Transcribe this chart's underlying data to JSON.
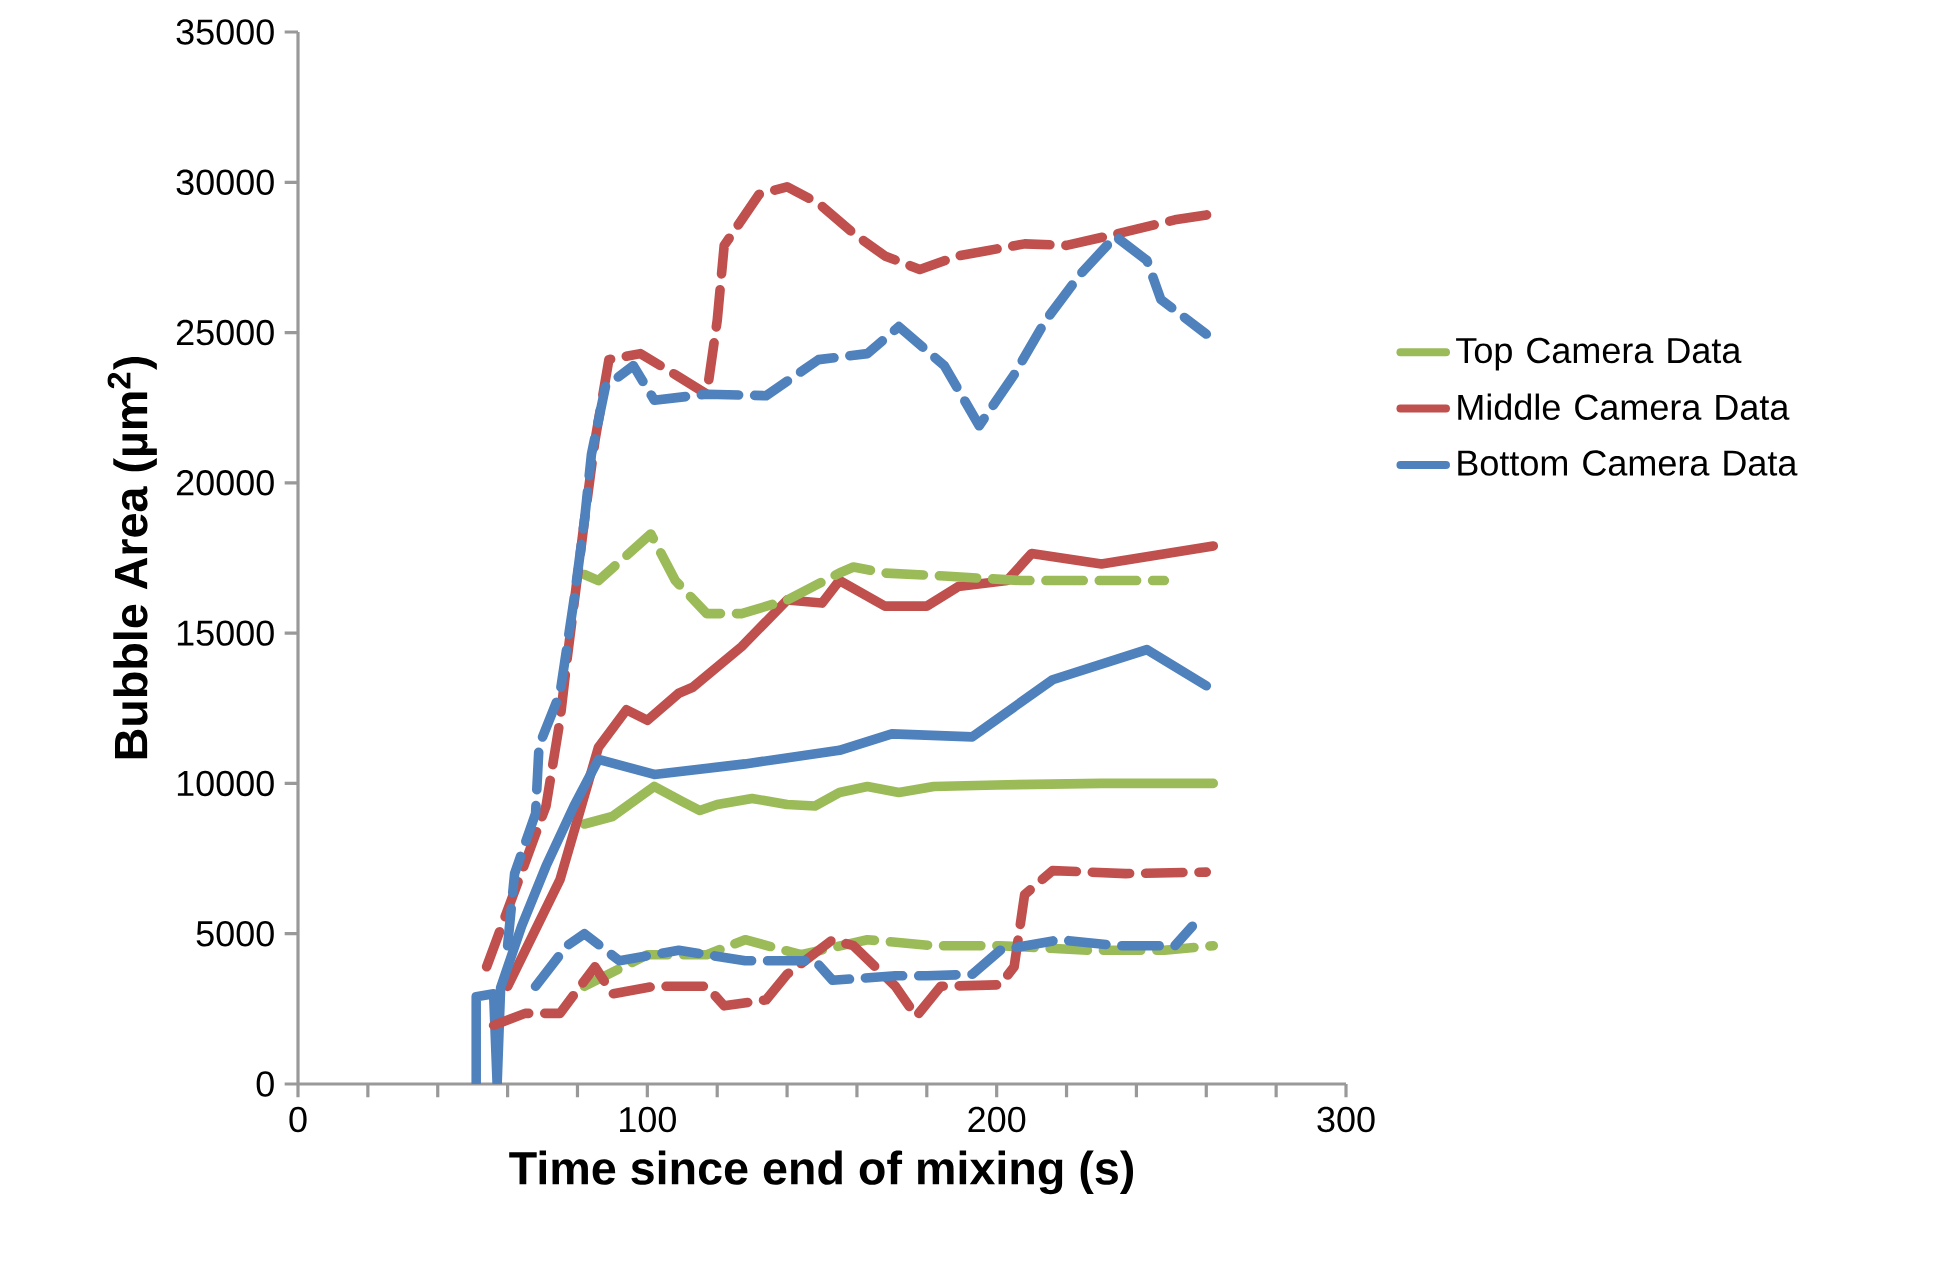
{
  "chart_data": {
    "type": "line",
    "xlabel": "Time since end of mixing (s)",
    "ylabel": "Bubble Area (µm$^{2}$)",
    "xlim": [
      0,
      300
    ],
    "xticks": [
      0,
      100,
      200,
      300
    ],
    "ylim": [
      0,
      35000
    ],
    "yticks": [
      0,
      5000,
      10000,
      15000,
      20000,
      25000,
      30000,
      35000
    ],
    "grid": false,
    "legend": "right",
    "marker": "none",
    "series": [
      {
        "name": "Top Camera Data",
        "color": "#9bbb59",
        "line_style": "solid",
        "x": [
          82,
          90,
          102,
          110,
          115,
          120,
          130,
          140,
          148,
          155,
          163,
          172,
          182,
          200,
          230,
          262
        ],
        "values": [
          8650,
          8900,
          9900,
          9400,
          9100,
          9300,
          9500,
          9300,
          9250,
          9700,
          9900,
          9700,
          9900,
          9950,
          10000,
          10000
        ]
      },
      {
        "name": "Middle Camera Data",
        "color": "#c0504d",
        "line_style": "solid",
        "x": [
          60,
          75,
          86,
          94,
          100,
          109,
          113,
          127,
          140,
          150,
          155,
          168,
          180,
          189,
          203,
          210,
          230,
          262
        ],
        "values": [
          3250,
          6800,
          11200,
          12450,
          12100,
          13000,
          13200,
          14550,
          16100,
          16000,
          16750,
          15900,
          15900,
          16550,
          16750,
          17650,
          17300,
          17900
        ]
      },
      {
        "name": "Bottom Camera Data",
        "color": "#4f81bd",
        "line_style": "solid",
        "x": [
          51,
          51,
          56,
          57,
          58,
          64,
          71,
          79,
          86,
          102,
          128,
          155,
          170,
          193,
          216,
          243,
          260
        ],
        "values": [
          0,
          2900,
          3000,
          0,
          3200,
          5250,
          7250,
          9250,
          10800,
          10300,
          10650,
          11100,
          11650,
          11550,
          13450,
          14450,
          13250
        ]
      },
      {
        "color": "#9bbb59",
        "line_style": "dashed",
        "x": [
          82,
          86,
          101,
          108,
          117,
          127,
          140,
          155,
          159,
          168,
          185,
          207,
          248
        ],
        "values": [
          16950,
          16750,
          18300,
          16750,
          15650,
          15650,
          16100,
          17000,
          17200,
          17000,
          16900,
          16750,
          16750
        ]
      },
      {
        "color": "#c0504d",
        "line_style": "dashed",
        "x": [
          54,
          71,
          75,
          77,
          82,
          85,
          89,
          98,
          108,
          117,
          120,
          122,
          132,
          140,
          149,
          159,
          168,
          178,
          189,
          208,
          220,
          235,
          251,
          262
        ],
        "values": [
          3900,
          9250,
          12100,
          14100,
          18750,
          21400,
          24100,
          24300,
          23600,
          22950,
          25400,
          27900,
          29600,
          29850,
          29300,
          28300,
          27550,
          27100,
          27550,
          27950,
          27900,
          28300,
          28750,
          28950
        ]
      },
      {
        "color": "#4f81bd",
        "line_style": "dashed",
        "x": [
          60,
          62,
          68,
          69,
          75,
          79,
          82,
          84,
          88,
          96,
          102,
          117,
          134,
          149,
          163,
          172,
          185,
          195,
          205,
          214,
          224,
          234,
          243,
          247,
          260
        ],
        "values": [
          4600,
          7000,
          9000,
          11250,
          13000,
          16100,
          18750,
          20950,
          23200,
          23900,
          22750,
          22950,
          22900,
          24100,
          24300,
          25200,
          23900,
          21900,
          23600,
          25400,
          26950,
          28200,
          27400,
          26100,
          24950
        ]
      },
      {
        "color": "#9bbb59",
        "line_style": "dashed",
        "x": [
          82,
          100,
          117,
          128,
          144,
          163,
          182,
          201,
          226,
          248,
          262
        ],
        "values": [
          3250,
          4300,
          4300,
          4800,
          4300,
          4800,
          4600,
          4600,
          4450,
          4450,
          4600
        ]
      },
      {
        "color": "#c0504d",
        "line_style": "dashed",
        "x": [
          56,
          65,
          75,
          85,
          90,
          102,
          117,
          122,
          134,
          140,
          153,
          159,
          171,
          177,
          184,
          201,
          205,
          208,
          216,
          237,
          260
        ],
        "values": [
          1950,
          2350,
          2350,
          3900,
          3000,
          3250,
          3250,
          2600,
          2800,
          3650,
          4800,
          4600,
          3250,
          2250,
          3250,
          3300,
          3900,
          6300,
          7100,
          7000,
          7050
        ]
      },
      {
        "color": "#4f81bd",
        "line_style": "dashed",
        "x": [
          68,
          77,
          82,
          92,
          109,
          128,
          140,
          148,
          153,
          171,
          180,
          193,
          201,
          218,
          235,
          251,
          256
        ],
        "values": [
          3250,
          4600,
          5000,
          4100,
          4450,
          4100,
          4100,
          4100,
          3450,
          3600,
          3600,
          3650,
          4450,
          4800,
          4600,
          4600,
          5250
        ]
      }
    ]
  }
}
